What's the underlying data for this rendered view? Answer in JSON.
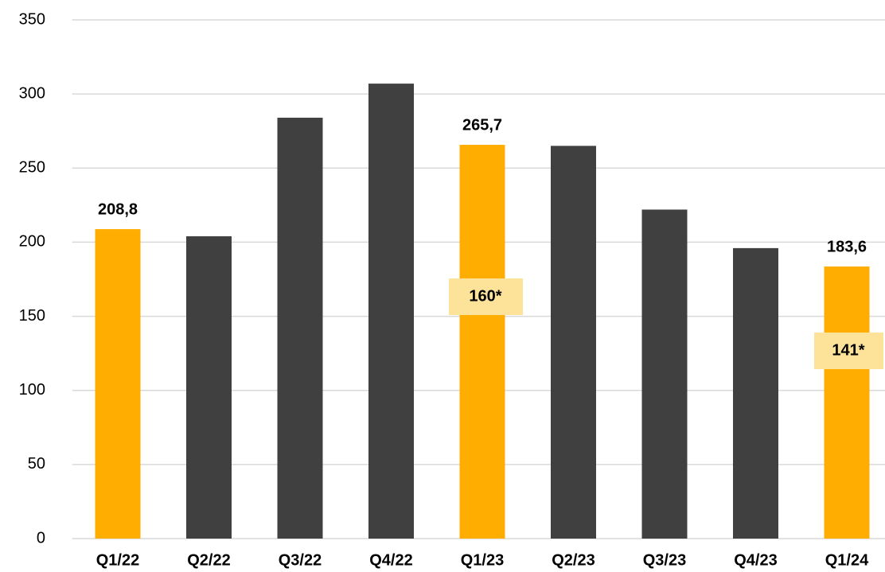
{
  "chart_data": {
    "type": "bar",
    "categories": [
      "Q1/22",
      "Q2/22",
      "Q3/22",
      "Q4/22",
      "Q1/23",
      "Q2/23",
      "Q3/23",
      "Q4/23",
      "Q1/24"
    ],
    "values": [
      208.8,
      204,
      284,
      307,
      265.7,
      265,
      222,
      196,
      183.6
    ],
    "value_labels": [
      "208,8",
      null,
      null,
      null,
      "265,7",
      null,
      null,
      null,
      "183,6"
    ],
    "colors": [
      "#ffad00",
      "#404040",
      "#404040",
      "#404040",
      "#ffad00",
      "#404040",
      "#404040",
      "#404040",
      "#ffad00"
    ],
    "annotations": [
      "160*",
      "141*"
    ],
    "ylim": [
      0,
      350
    ],
    "yticks": [
      0,
      50,
      100,
      150,
      200,
      250,
      300,
      350
    ],
    "grid": true
  }
}
